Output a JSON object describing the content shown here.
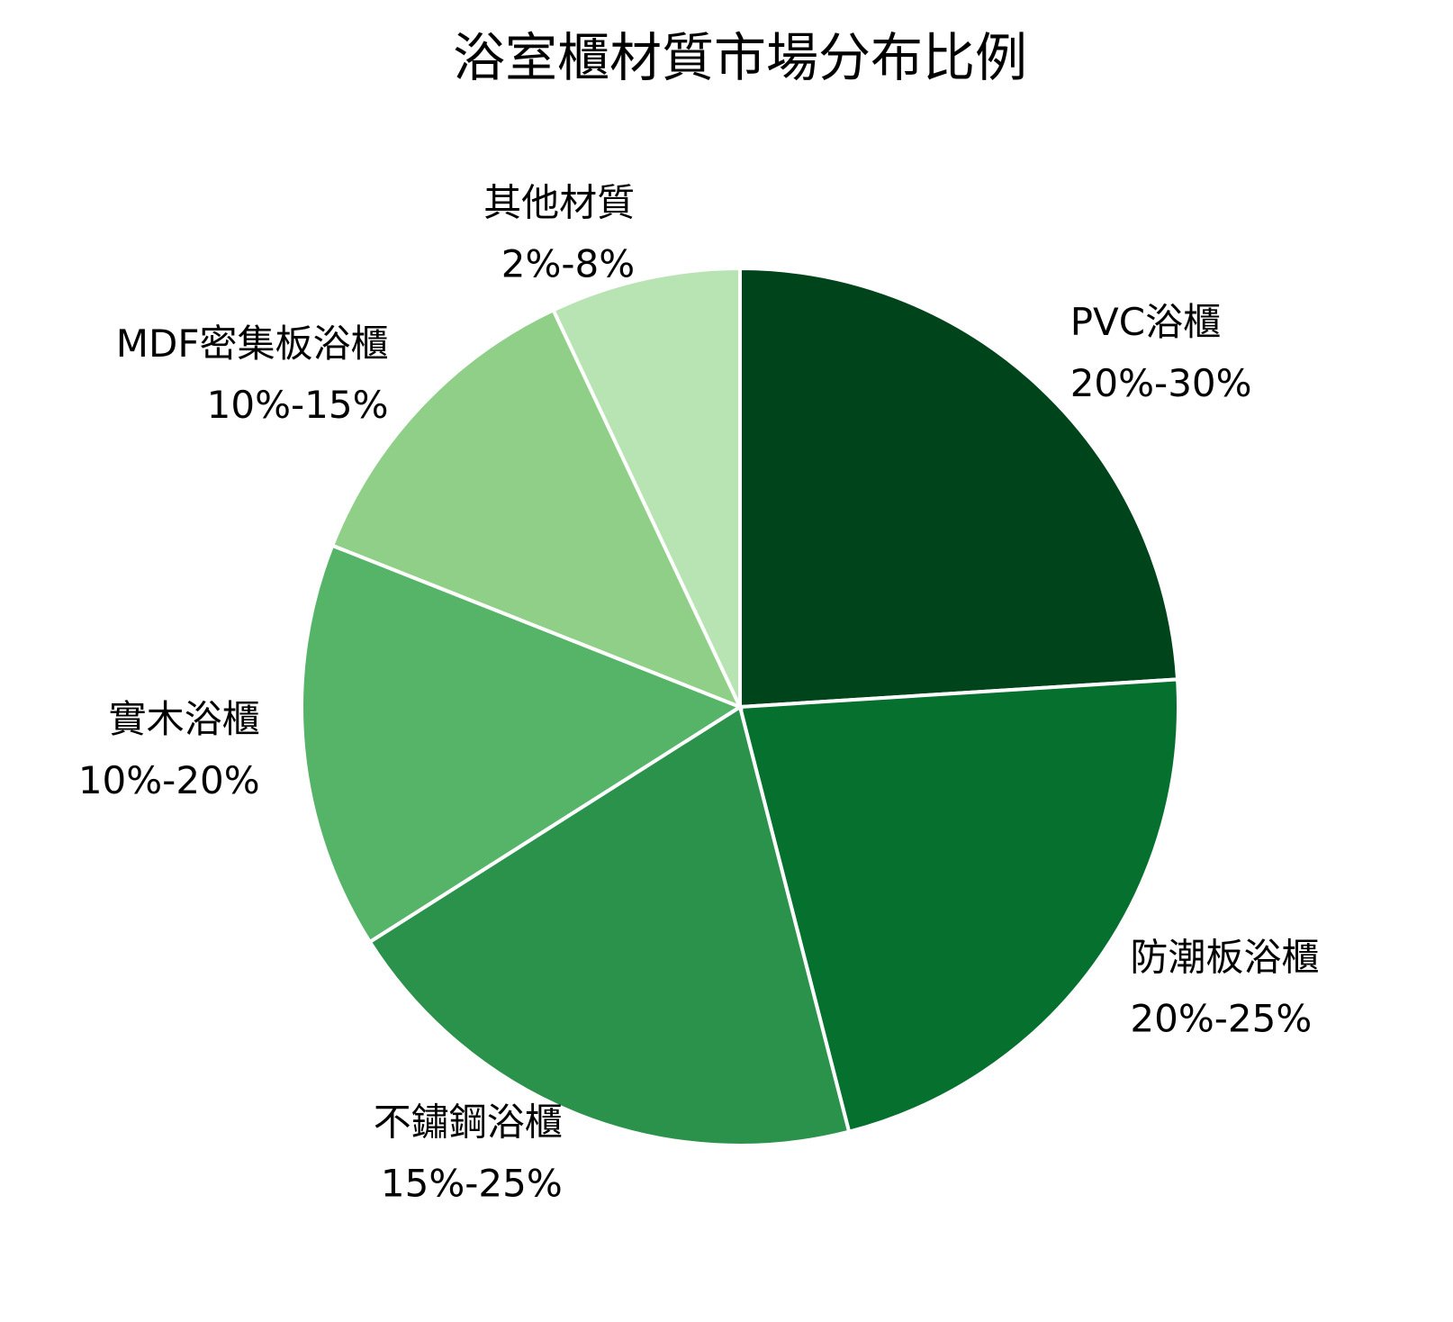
{
  "chart_data": {
    "type": "pie",
    "title": "浴室櫃材質市場分布比例",
    "categories": [
      "PVC浴櫃",
      "防潮板浴櫃",
      "不鏽鋼浴櫃",
      "實木浴櫃",
      "MDF密集板浴櫃",
      "其他材質"
    ],
    "range_labels": [
      "20%-30%",
      "20%-25%",
      "15%-25%",
      "10%-20%",
      "10%-15%",
      "2%-8%"
    ],
    "values": [
      24,
      22,
      20,
      15,
      12,
      7
    ],
    "colors": [
      "#00441b",
      "#06702f",
      "#2b924b",
      "#56b469",
      "#8fcf88",
      "#b8e3b2"
    ],
    "start_angle": 90,
    "direction": "clockwise"
  }
}
